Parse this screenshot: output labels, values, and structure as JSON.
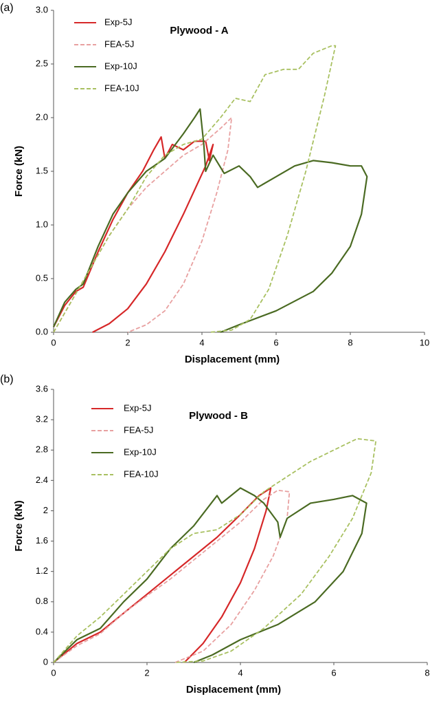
{
  "chart_data": [
    {
      "type": "line",
      "label": "(a)",
      "title": "Plywood - A",
      "xlabel": "Displacement (mm)",
      "ylabel": "Force (kN)",
      "xlim": [
        0,
        10
      ],
      "xticks": [
        0,
        2,
        4,
        6,
        8,
        10
      ],
      "ylim": [
        0,
        3
      ],
      "yticks": [
        {
          "value": 0,
          "label": "0.0"
        },
        0.5,
        {
          "value": 1,
          "label": "1.0"
        },
        1.5,
        {
          "value": 2,
          "label": "2.0"
        },
        2.5,
        {
          "value": 3,
          "label": "3.0"
        }
      ],
      "grid": false,
      "legend": "upper-left",
      "series": [
        {
          "name": "Exp-5J",
          "color": "#d62728",
          "dashed": false,
          "x": [
            0,
            0.3,
            0.6,
            0.8,
            1.2,
            1.6,
            2.0,
            2.4,
            2.7,
            2.9,
            3.0,
            3.2,
            3.5,
            3.8,
            4.1,
            4.2,
            4.3,
            4.1,
            3.5,
            3.0,
            2.5,
            2.0,
            1.5,
            1.05
          ],
          "values": [
            0.05,
            0.25,
            0.38,
            0.42,
            0.75,
            1.05,
            1.3,
            1.5,
            1.7,
            1.82,
            1.62,
            1.75,
            1.7,
            1.78,
            1.78,
            1.6,
            1.75,
            1.55,
            1.1,
            0.75,
            0.45,
            0.22,
            0.08,
            0
          ]
        },
        {
          "name": "FEA-5J",
          "color": "#e8a0a0",
          "dashed": true,
          "x": [
            0,
            0.5,
            1,
            1.5,
            2,
            2.5,
            3,
            3.5,
            4,
            4.5,
            4.8,
            4.7,
            4.4,
            4.0,
            3.5,
            3.0,
            2.5,
            2.0
          ],
          "values": [
            0,
            0.3,
            0.6,
            0.9,
            1.15,
            1.35,
            1.5,
            1.65,
            1.75,
            1.9,
            2.0,
            1.7,
            1.3,
            0.85,
            0.45,
            0.2,
            0.07,
            0
          ]
        },
        {
          "name": "Exp-10J",
          "color": "#4a6a22",
          "dashed": false,
          "x": [
            0,
            0.3,
            0.6,
            0.8,
            1.2,
            1.6,
            2,
            2.5,
            3,
            3.5,
            3.8,
            3.95,
            4.05,
            4.1,
            4.3,
            4.6,
            5,
            5.3,
            5.5,
            6,
            6.5,
            7,
            7.5,
            8,
            8.3,
            8.45,
            8.3,
            8,
            7.5,
            7,
            6,
            5,
            4.5
          ],
          "values": [
            0.05,
            0.28,
            0.4,
            0.45,
            0.8,
            1.1,
            1.3,
            1.5,
            1.62,
            1.85,
            2.0,
            2.08,
            1.75,
            1.5,
            1.65,
            1.48,
            1.55,
            1.45,
            1.35,
            1.45,
            1.55,
            1.6,
            1.58,
            1.55,
            1.55,
            1.45,
            1.1,
            0.8,
            0.55,
            0.38,
            0.2,
            0.07,
            0
          ]
        },
        {
          "name": "FEA-10J",
          "color": "#a8c060",
          "dashed": true,
          "x": [
            0,
            0.5,
            1,
            1.5,
            2,
            2.5,
            3,
            3.5,
            4,
            4.5,
            4.9,
            5.3,
            5.7,
            6.2,
            6.6,
            7,
            7.5,
            7.6,
            7.3,
            6.8,
            6.3,
            5.8,
            5.3,
            4.8,
            4.2
          ],
          "values": [
            0,
            0.3,
            0.6,
            0.9,
            1.15,
            1.45,
            1.65,
            1.75,
            1.8,
            2.0,
            2.18,
            2.15,
            2.4,
            2.45,
            2.45,
            2.6,
            2.67,
            2.67,
            2.2,
            1.5,
            0.9,
            0.4,
            0.12,
            0.02,
            0
          ]
        }
      ]
    },
    {
      "type": "line",
      "label": "(b)",
      "title": "Plywood - B",
      "xlabel": "Displacement (mm)",
      "ylabel": "Force (kN)",
      "xlim": [
        0,
        8
      ],
      "xticks": [
        0,
        2,
        4,
        6,
        8
      ],
      "ylim": [
        0,
        3.6
      ],
      "yticks": [
        0,
        0.4,
        0.8,
        1.2,
        1.6,
        2,
        2.4,
        2.8,
        3.2,
        3.6
      ],
      "grid": false,
      "legend": "upper-left",
      "series": [
        {
          "name": "Exp-5J",
          "color": "#d62728",
          "dashed": false,
          "x": [
            0,
            0.5,
            1,
            1.5,
            2,
            2.5,
            3,
            3.5,
            4,
            4.4,
            4.65,
            4.55,
            4.3,
            4.0,
            3.6,
            3.2,
            2.8
          ],
          "values": [
            0,
            0.25,
            0.4,
            0.65,
            0.9,
            1.15,
            1.4,
            1.65,
            1.95,
            2.2,
            2.3,
            2.0,
            1.5,
            1.05,
            0.6,
            0.25,
            0
          ]
        },
        {
          "name": "FEA-5J",
          "color": "#e8a0a0",
          "dashed": true,
          "x": [
            0,
            0.5,
            1,
            1.5,
            2,
            2.5,
            3,
            3.5,
            4,
            4.5,
            4.8,
            5.05,
            5.0,
            4.7,
            4.3,
            3.8,
            3.2,
            2.6
          ],
          "values": [
            0,
            0.22,
            0.38,
            0.65,
            0.88,
            1.1,
            1.35,
            1.6,
            1.85,
            2.15,
            2.27,
            2.25,
            1.9,
            1.4,
            0.95,
            0.5,
            0.15,
            0
          ]
        },
        {
          "name": "Exp-10J",
          "color": "#4a6a22",
          "dashed": false,
          "x": [
            0,
            0.5,
            1,
            1.5,
            2,
            2.5,
            3,
            3.5,
            3.6,
            4,
            4.3,
            4.5,
            4.8,
            4.85,
            5,
            5.5,
            6,
            6.4,
            6.7,
            6.6,
            6.2,
            5.6,
            4.8,
            4,
            3.4,
            3.0
          ],
          "values": [
            0,
            0.3,
            0.45,
            0.8,
            1.1,
            1.5,
            1.8,
            2.2,
            2.1,
            2.3,
            2.2,
            2.1,
            1.85,
            1.65,
            1.9,
            2.1,
            2.15,
            2.2,
            2.1,
            1.7,
            1.2,
            0.8,
            0.5,
            0.3,
            0.1,
            0
          ]
        },
        {
          "name": "FEA-10J",
          "color": "#a8c060",
          "dashed": true,
          "x": [
            0,
            0.5,
            1,
            1.5,
            2,
            2.5,
            3,
            3.5,
            4,
            4.5,
            5,
            5.5,
            6,
            6.5,
            6.9,
            6.8,
            6.4,
            5.9,
            5.3,
            4.5,
            3.8,
            3.2,
            2.6
          ],
          "values": [
            0,
            0.35,
            0.6,
            0.9,
            1.2,
            1.5,
            1.7,
            1.75,
            1.95,
            2.25,
            2.45,
            2.65,
            2.8,
            2.95,
            2.92,
            2.5,
            1.9,
            1.4,
            0.9,
            0.45,
            0.15,
            0.02,
            0
          ]
        }
      ]
    }
  ]
}
